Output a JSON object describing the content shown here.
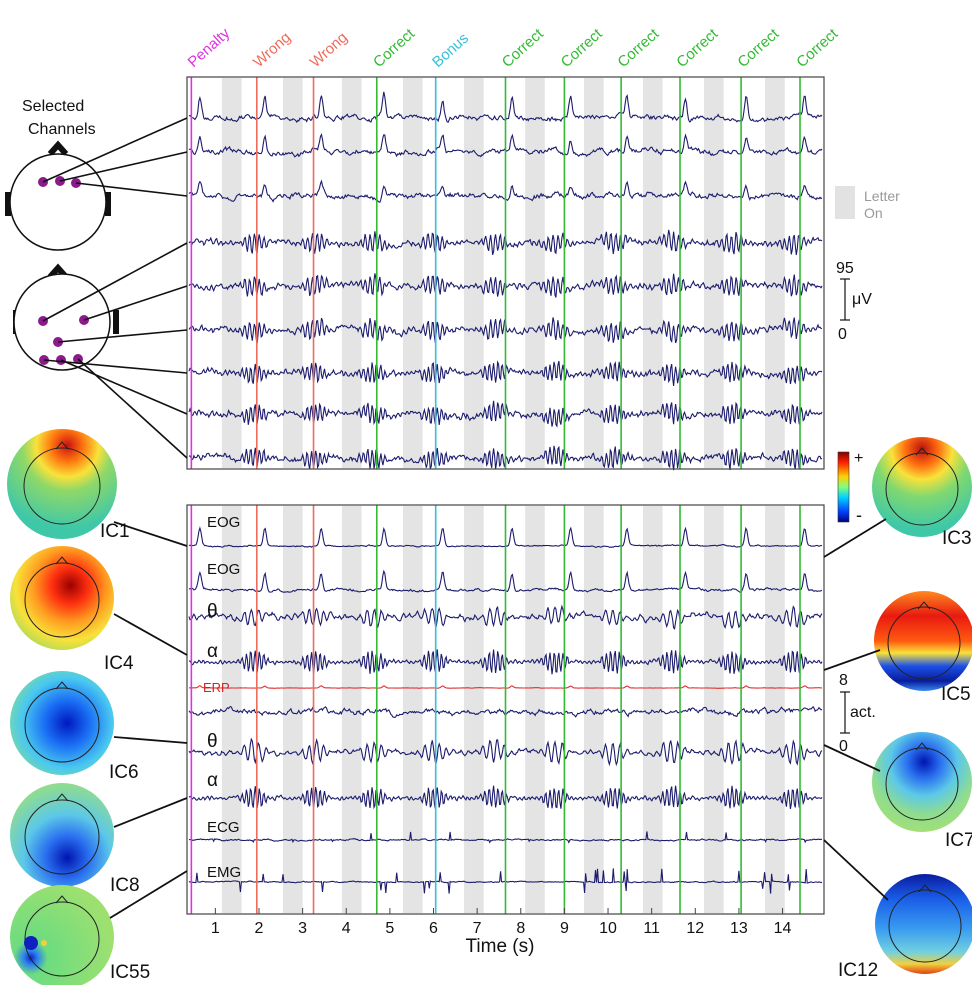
{
  "chart_data": {
    "type": "line",
    "time_axis": {
      "xlabel": "Time (s)",
      "ticks": [
        1,
        2,
        3,
        4,
        5,
        6,
        7,
        8,
        9,
        10,
        11,
        12,
        13,
        14
      ],
      "range": [
        0.35,
        14.95
      ]
    },
    "events": [
      {
        "label": "Penalty",
        "t": 0.45,
        "color": "#dd33dd"
      },
      {
        "label": "Wrong",
        "t": 1.95,
        "color": "#ef6b5b"
      },
      {
        "label": "Wrong",
        "t": 3.25,
        "color": "#ef6b5b"
      },
      {
        "label": "Correct",
        "t": 4.7,
        "color": "#33bb33"
      },
      {
        "label": "Bonus",
        "t": 6.05,
        "color": "#33c1dd"
      },
      {
        "label": "Correct",
        "t": 7.65,
        "color": "#33bb33"
      },
      {
        "label": "Correct",
        "t": 9.0,
        "color": "#33bb33"
      },
      {
        "label": "Correct",
        "t": 10.3,
        "color": "#33bb33"
      },
      {
        "label": "Correct",
        "t": 11.65,
        "color": "#33bb33"
      },
      {
        "label": "Correct",
        "t": 13.05,
        "color": "#33bb33"
      },
      {
        "label": "Correct",
        "t": 14.4,
        "color": "#33bb33"
      }
    ],
    "letter_on": {
      "label": "Letter On",
      "starts": [
        1.15,
        2.55,
        3.9,
        5.3,
        6.7,
        8.1,
        9.45,
        10.8,
        12.2,
        13.6,
        14.95
      ],
      "duration": 0.45
    },
    "top_panel": {
      "scale": {
        "max": "95",
        "min": "0",
        "unit": "μV"
      },
      "channels": 9
    },
    "bottom_panel": {
      "scale": {
        "max": "8",
        "min": "0",
        "unit": "act."
      },
      "traces": [
        {
          "label": "EOG",
          "ic": "IC1"
        },
        {
          "label": "EOG",
          "ic": "IC3"
        },
        {
          "label": "θ",
          "ic": "IC4"
        },
        {
          "label": "α",
          "ic": "IC5"
        },
        {
          "label": "ERP",
          "ic": "IC6"
        },
        {
          "label": "θ",
          "ic": "IC7"
        },
        {
          "label": "α",
          "ic": "IC8"
        },
        {
          "label": "ECG",
          "ic": "IC12"
        },
        {
          "label": "EMG",
          "ic": "IC55"
        }
      ]
    },
    "colorbar": {
      "plus": "+",
      "minus": "-"
    },
    "selected_channels_label": "Selected Channels",
    "ic_maps": [
      "IC1",
      "IC4",
      "IC6",
      "IC8",
      "IC55",
      "IC3",
      "IC5",
      "IC7",
      "IC12"
    ]
  },
  "colors": {
    "trace": "#1c1c6e",
    "erp": "#e03030",
    "shade": "#e4e4e4",
    "electrode": "#8b1a8b"
  }
}
